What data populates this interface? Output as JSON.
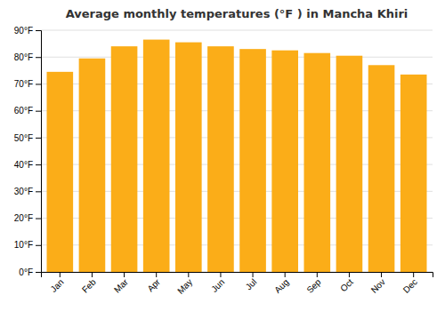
{
  "chart_data": {
    "type": "bar",
    "title": "Average monthly temperatures (°F ) in Mancha Khiri",
    "categories": [
      "Jan",
      "Feb",
      "Mar",
      "Apr",
      "May",
      "Jun",
      "Jul",
      "Aug",
      "Sep",
      "Oct",
      "Nov",
      "Dec"
    ],
    "values": [
      74.5,
      79.5,
      84.0,
      86.5,
      85.5,
      84.0,
      83.0,
      82.5,
      81.5,
      80.5,
      77.0,
      73.5
    ],
    "color": "#FBAD18",
    "ylim": [
      0,
      90
    ],
    "yticks": [
      {
        "value": 0,
        "label": "0°F"
      },
      {
        "value": 10,
        "label": "10°F"
      },
      {
        "value": 20,
        "label": "20°F"
      },
      {
        "value": 30,
        "label": "30°F"
      },
      {
        "value": 40,
        "label": "40°F"
      },
      {
        "value": 50,
        "label": "50°F"
      },
      {
        "value": 60,
        "label": "60°F"
      },
      {
        "value": 70,
        "label": "70°F"
      },
      {
        "value": 80,
        "label": "80°F"
      },
      {
        "value": 90,
        "label": "90°F"
      }
    ],
    "grid": true
  }
}
